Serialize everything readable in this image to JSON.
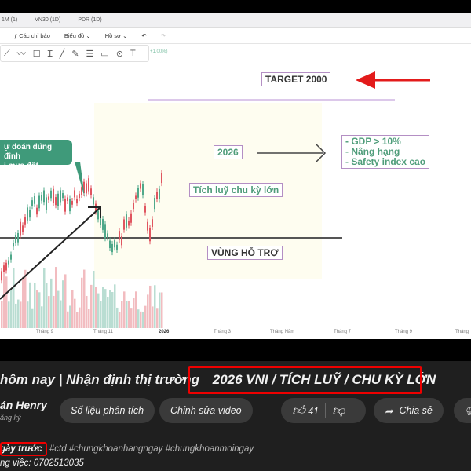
{
  "tabs": [
    "1M (1)",
    "VN30 (1D)",
    "PDR (1D)"
  ],
  "toolbar": {
    "indicators": "Các chỉ báo",
    "chart": "Biểu đồ",
    "profile": "Hồ sơ",
    "undo": "↶",
    "redo": "↷"
  },
  "draw_tools": [
    "cursor-line",
    "polyline",
    "rectangle",
    "text-cursor",
    "line",
    "pen",
    "fib",
    "callout",
    "pin",
    "text"
  ],
  "change_label": "+1.00%)",
  "chart": {
    "callout": [
      "ự đoán đúng đỉnh",
      "i mua đất"
    ],
    "target": "TARGET 2000",
    "year": "2026",
    "accumulate": "Tích luỹ chu kỳ lớn",
    "points": [
      "- GDP > 10%",
      "- Nâng hạng",
      "- Safety index cao"
    ],
    "support": "VÙNG HỖ TRỢ",
    "x_ticks": [
      "Tháng 9",
      "Tháng 11",
      "2026",
      "Tháng 3",
      "Tháng Năm",
      "Tháng 7",
      "Tháng 9",
      "Tháng"
    ],
    "colors": {
      "up": "#4fa88a",
      "down": "#e0555f",
      "accent_red": "#e31b1b",
      "callout": "#3f9a7a"
    }
  },
  "video": {
    "title_prefix": "hôm nay | Nhận định thị trường",
    "title_highlight": "2026 VNI / TÍCH LUỸ / CHU KỲ LỚN",
    "channel": "án Henry",
    "subscribe_status": "ăng ký",
    "analytics_button": "Số liệu phân tích",
    "edit_button": "Chỉnh sửa video",
    "likes": "41",
    "share_button": "Chia sẻ",
    "time_ago": "gày trước",
    "hashtags": "#ctd #chungkhoanhangngay #chungkhoanmoingay",
    "contact": "ng việc: 0702513035"
  }
}
